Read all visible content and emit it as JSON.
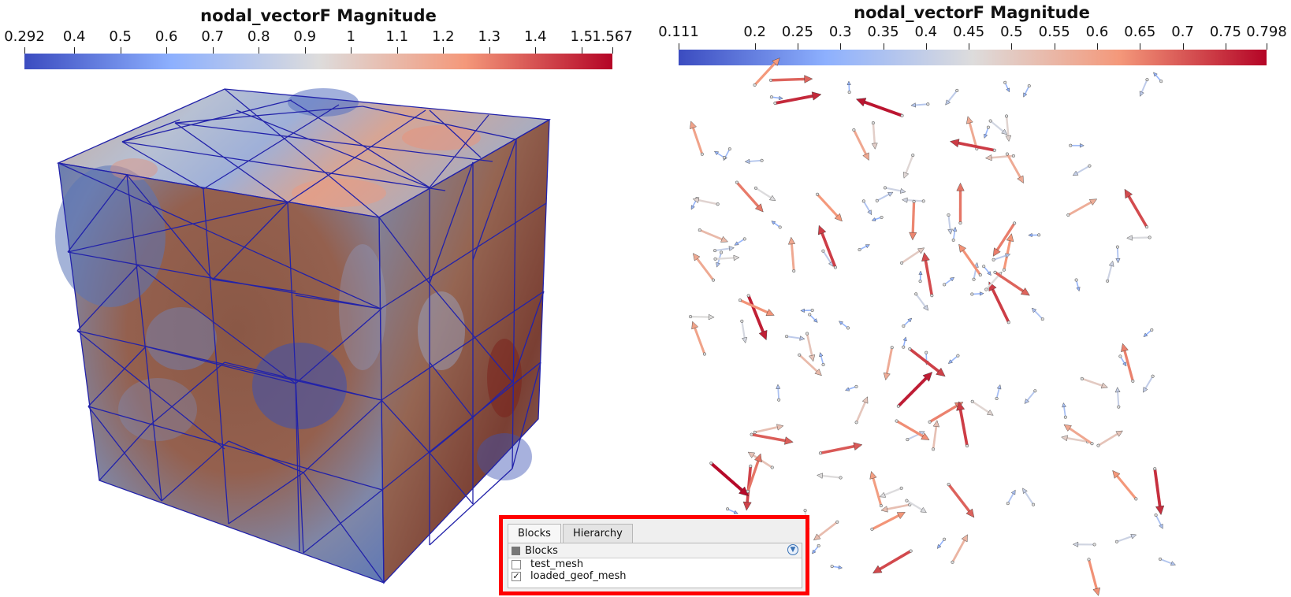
{
  "left_view": {
    "colorbar": {
      "title": "nodal_vectorF Magnitude",
      "min_label": "0.292",
      "max_label": "1.567",
      "tick_labels": [
        "0.292",
        "0.4",
        "0.5",
        "0.6",
        "0.7",
        "0.8",
        "0.9",
        "1",
        "1.1",
        "1.2",
        "1.3",
        "1.4",
        "1.5",
        "1.567"
      ],
      "range": [
        0.292,
        1.567
      ],
      "colors": [
        "#3b4cc0",
        "#8db0fe",
        "#dddcdc",
        "#f4987a",
        "#b40426"
      ]
    },
    "object": "cube-mesh"
  },
  "right_view": {
    "colorbar": {
      "title": "nodal_vectorF Magnitude",
      "min_label": "0.111",
      "max_label": "0.798",
      "tick_labels": [
        "0.111",
        "0.2",
        "0.25",
        "0.3",
        "0.35",
        "0.4",
        "0.45",
        "0.5",
        "0.55",
        "0.6",
        "0.65",
        "0.7",
        "0.75",
        "0.798"
      ],
      "range": [
        0.111,
        0.798
      ],
      "colors": [
        "#3b4cc0",
        "#8db0fe",
        "#dddcdc",
        "#f4987a",
        "#b40426"
      ]
    },
    "object": "arrow-glyphs"
  },
  "block_panel": {
    "tabs": [
      "Blocks",
      "Hierarchy"
    ],
    "active_tab": "Blocks",
    "header": "Blocks",
    "items": [
      {
        "label": "test_mesh",
        "checked": false
      },
      {
        "label": "loaded_geof_mesh",
        "checked": true
      }
    ],
    "checkmark": "✓",
    "highlight_color": "#ff0000"
  }
}
